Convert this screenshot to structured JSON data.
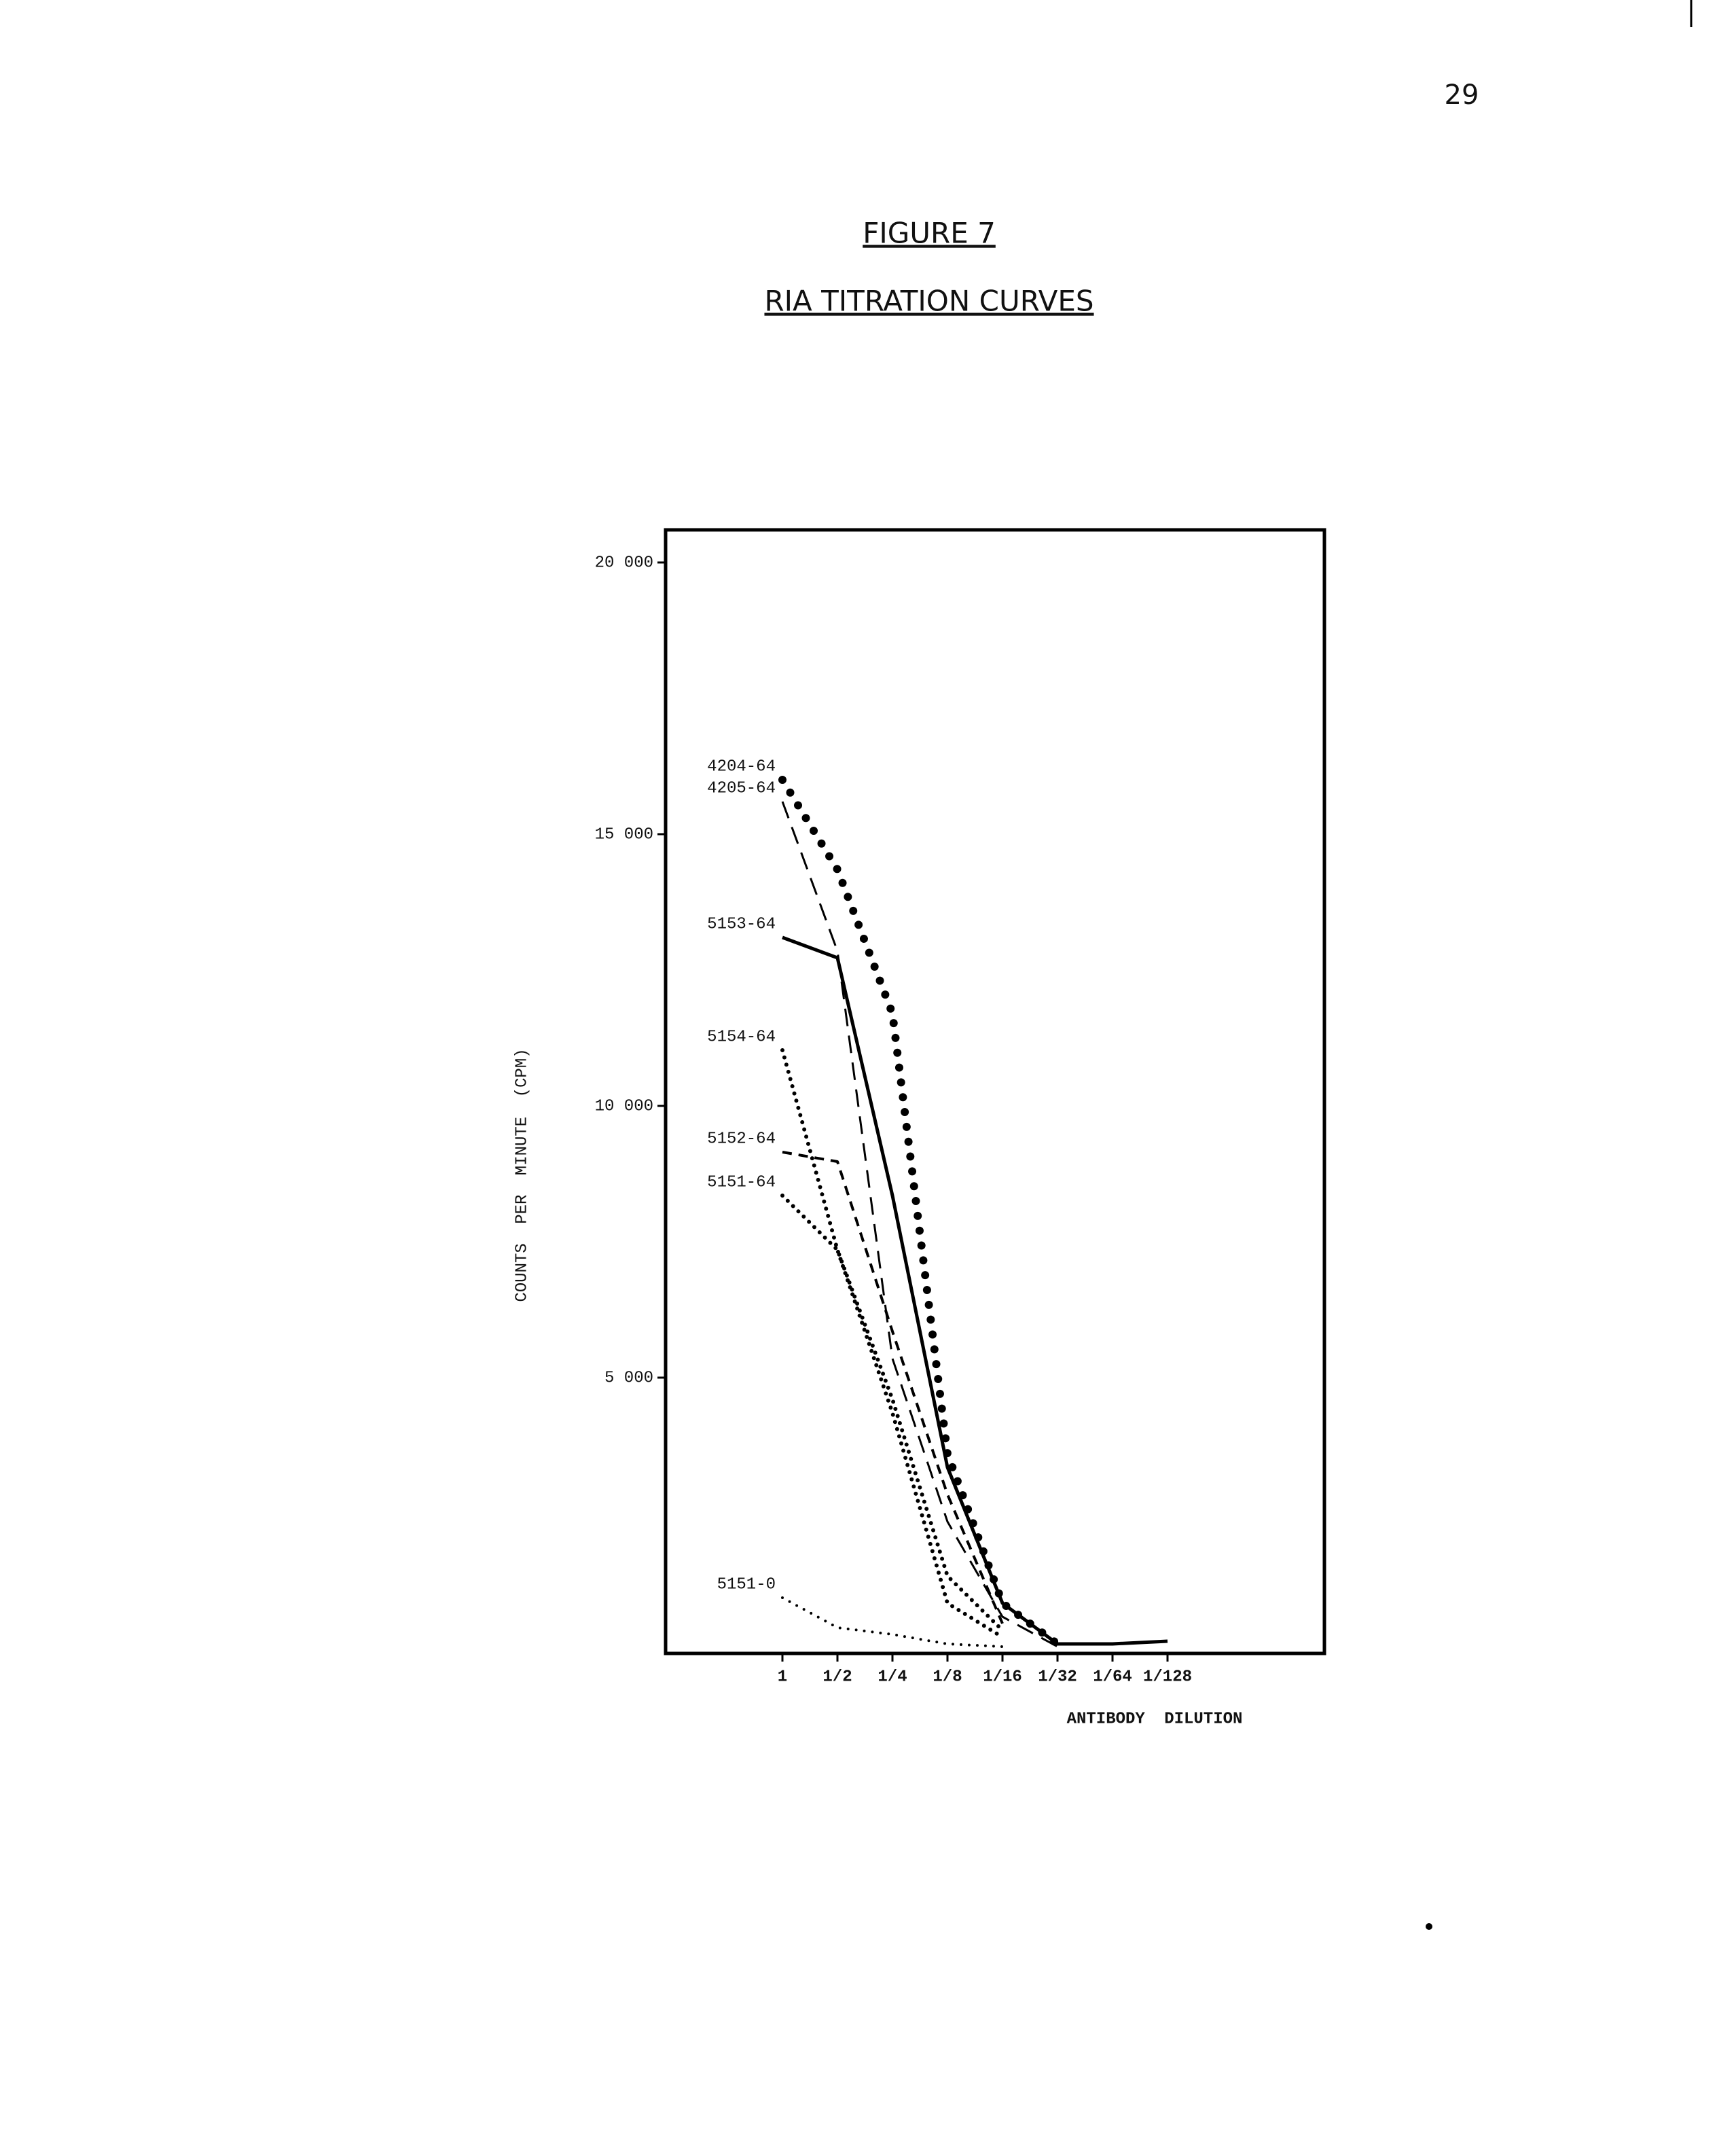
{
  "page_number": "29",
  "chart_data": {
    "type": "line",
    "figure_label": "FIGURE 7",
    "title": "RIA TITRATION CURVES",
    "xlabel": "ANTIBODY DILUTION",
    "ylabel": "COUNTS PER MINUTE (CPM)",
    "categories": [
      "1",
      "1/2",
      "1/4",
      "1/8",
      "1/16",
      "1/32",
      "1/64",
      "1/128"
    ],
    "ylim": [
      0,
      20600
    ],
    "yticks": [
      {
        "value": 5000,
        "label": "5 000"
      },
      {
        "value": 10000,
        "label": "10 000"
      },
      {
        "value": 15000,
        "label": "15 000"
      },
      {
        "value": 20000,
        "label": "20 000"
      }
    ],
    "series": [
      {
        "name": "4204-64",
        "color": "#000000",
        "style": "big-dots",
        "values": [
          16000,
          14350,
          11700,
          3600,
          850,
          100,
          null,
          null
        ]
      },
      {
        "name": "4205-64",
        "color": "#000000",
        "style": "long-dash",
        "values": [
          15600,
          12850,
          5350,
          2350,
          600,
          50,
          null,
          null
        ]
      },
      {
        "name": "5153-64",
        "color": "#000000",
        "style": "solid",
        "values": [
          13100,
          12725,
          8350,
          3350,
          850,
          100,
          100,
          150
        ]
      },
      {
        "name": "5154-64",
        "color": "#000000",
        "style": "dots",
        "values": [
          11025,
          7350,
          4350,
          850,
          225,
          null,
          null,
          null
        ]
      },
      {
        "name": "5152-64",
        "color": "#000000",
        "style": "short-dash",
        "values": [
          9150,
          8975,
          5850,
          2850,
          475,
          null,
          null,
          null
        ]
      },
      {
        "name": "5151-64",
        "color": "#000000",
        "style": "dots",
        "values": [
          8350,
          7350,
          4600,
          1350,
          350,
          null,
          null,
          null
        ]
      },
      {
        "name": "5151-0",
        "color": "#000000",
        "style": "fine-dots",
        "values": [
          950,
          400,
          275,
          100,
          50,
          null,
          null,
          null
        ]
      }
    ]
  }
}
